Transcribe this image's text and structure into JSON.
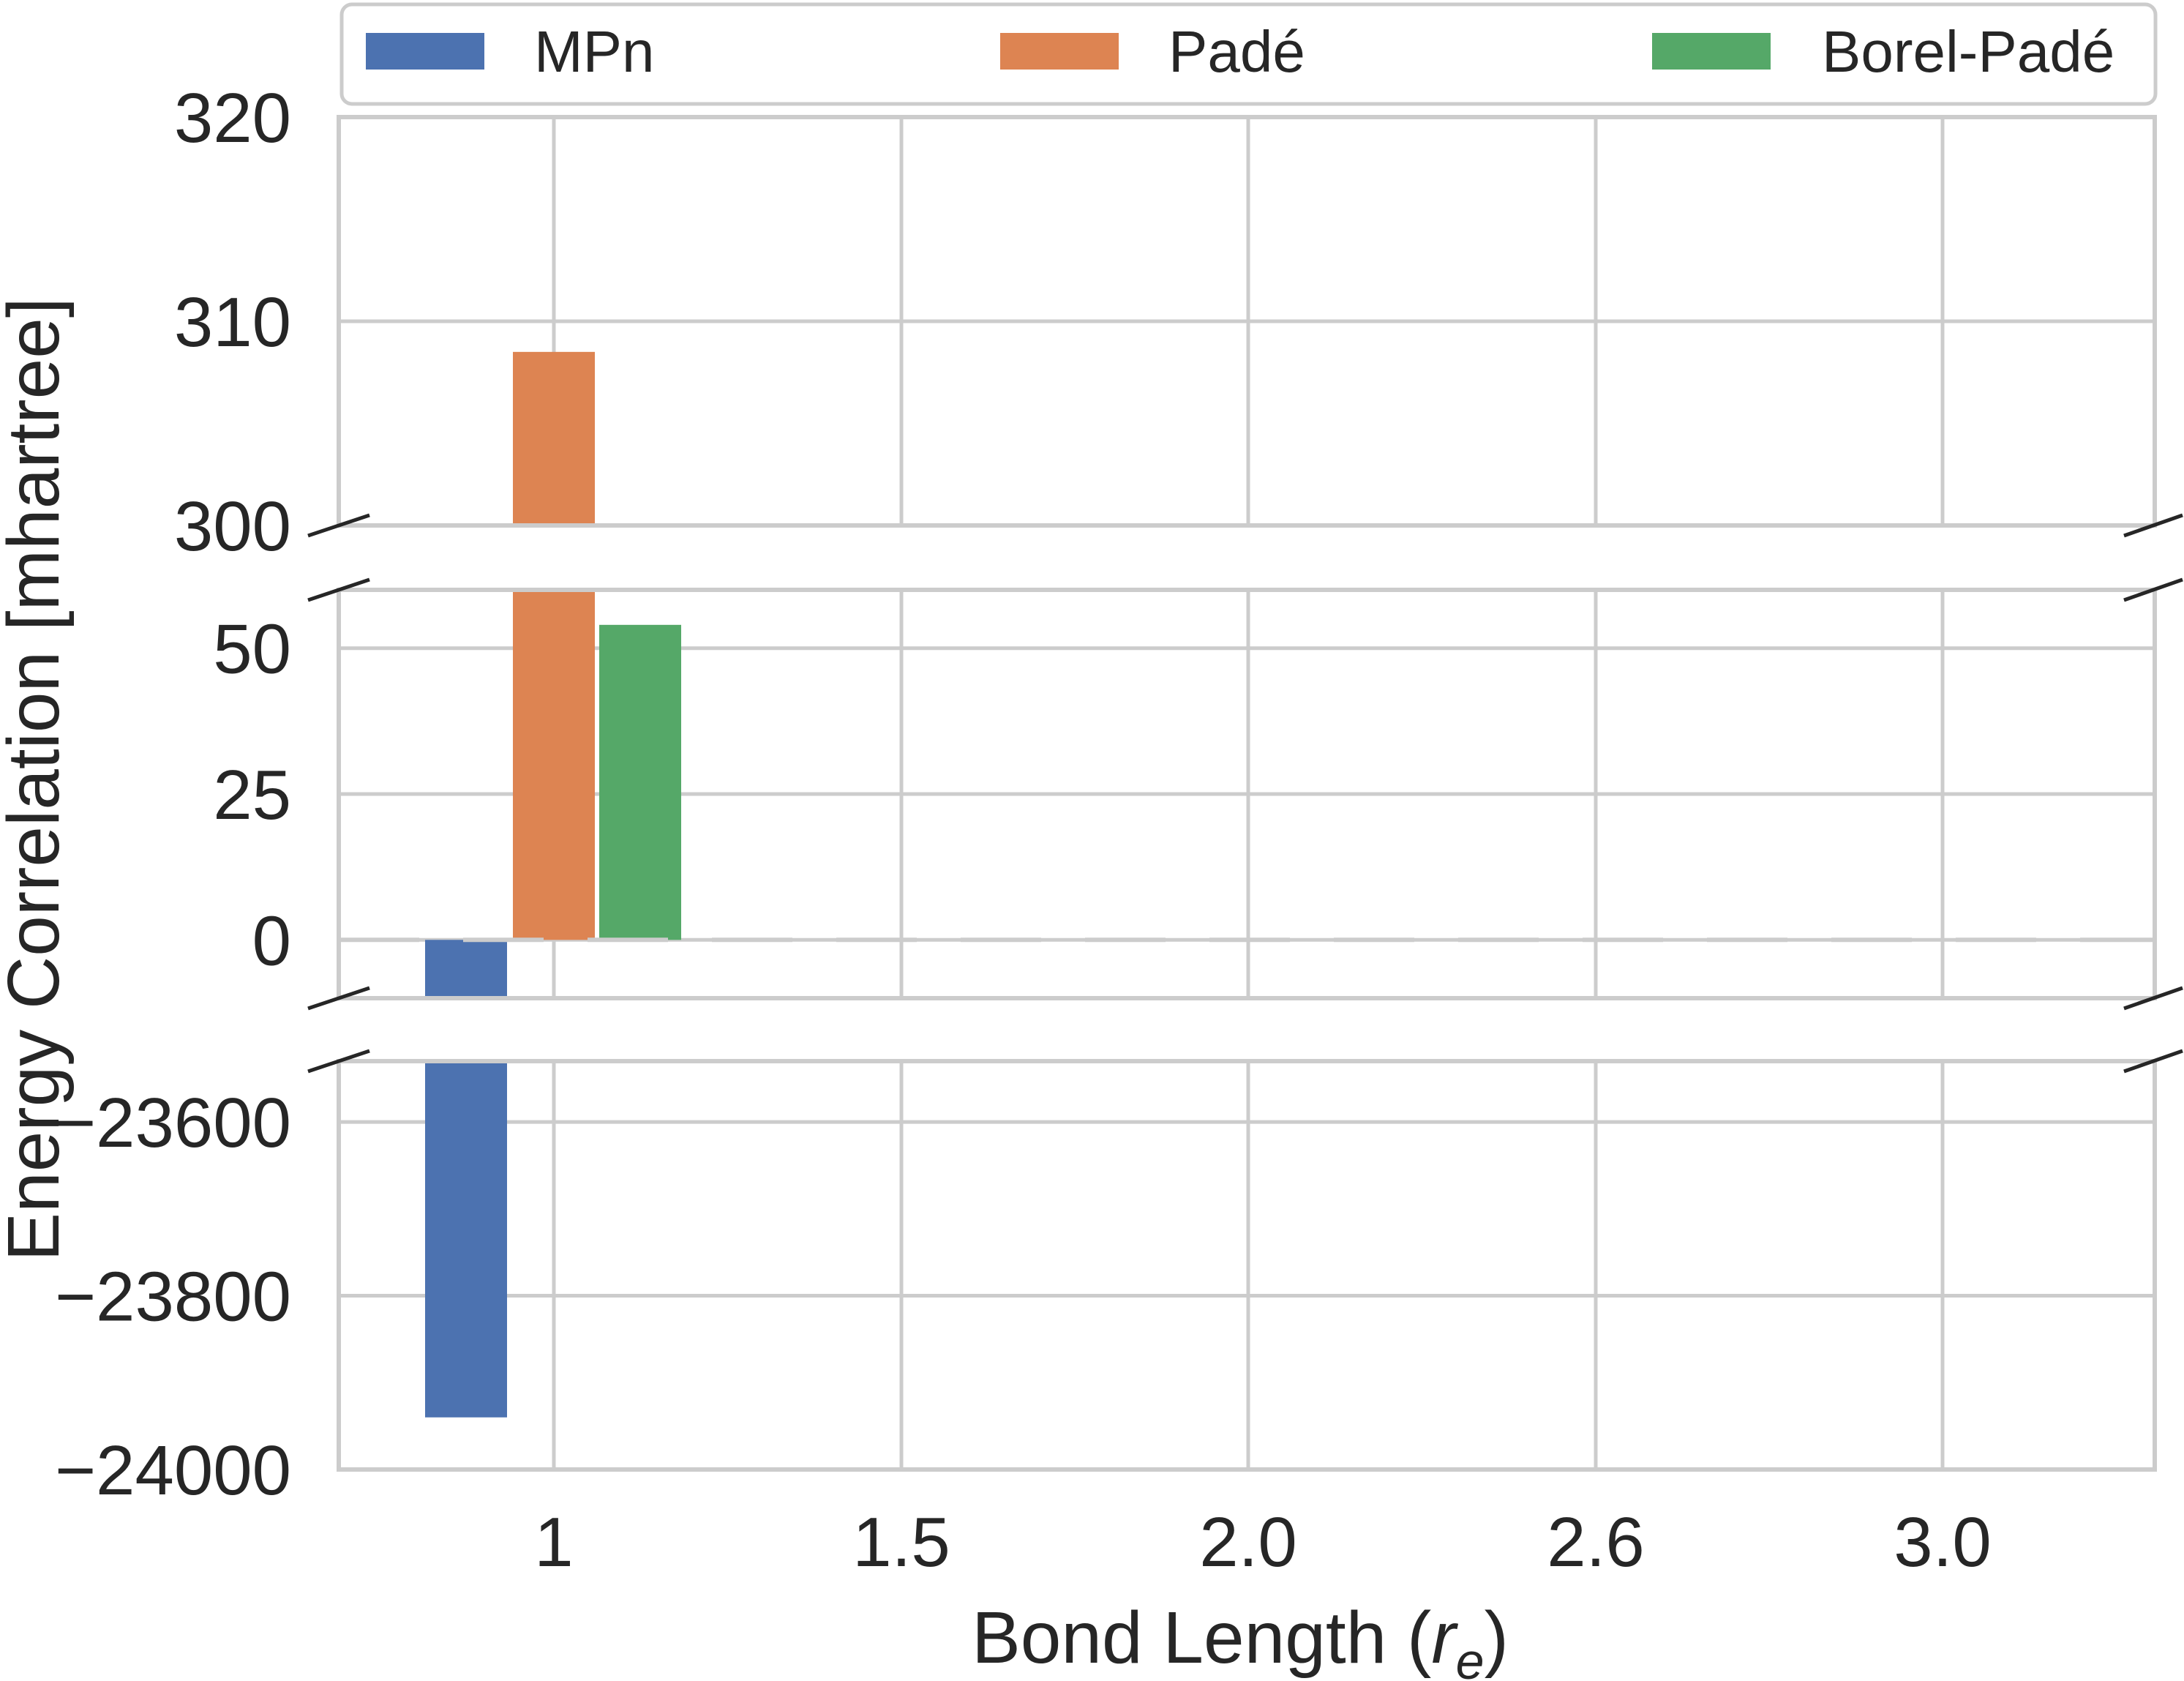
{
  "chart_data": {
    "type": "bar",
    "broken_axis": true,
    "xlabel": "Bond Length (",
    "xlabel_math": "r",
    "xlabel_sub": "e",
    "xlabel_close": ")",
    "ylabel": "Energy Correlation [mhartree]",
    "categories": [
      "1",
      "1.5",
      "2.0",
      "2.6",
      "3.0"
    ],
    "series": [
      {
        "name": "MPn",
        "color": "#4c72b0",
        "values": [
          -23940,
          null,
          null,
          null,
          null
        ]
      },
      {
        "name": "Padé",
        "color": "#dd8452",
        "values": [
          308.5,
          null,
          null,
          null,
          null
        ]
      },
      {
        "name": "Borel-Padé",
        "color": "#55a868",
        "values": [
          54,
          null,
          null,
          null,
          null
        ]
      }
    ],
    "panels": [
      {
        "name": "top",
        "ylim": [
          300,
          320
        ],
        "yticks": [
          300,
          310,
          320
        ],
        "ytick_labels": [
          "300",
          "310",
          "320"
        ]
      },
      {
        "name": "middle",
        "ylim": [
          -10,
          60
        ],
        "yticks": [
          0,
          25,
          50
        ],
        "ytick_labels": [
          "0",
          "25",
          "50"
        ]
      },
      {
        "name": "bottom",
        "ylim": [
          -24000,
          -23530
        ],
        "yticks": [
          -24000,
          -23800,
          -23600
        ],
        "ytick_labels": [
          "−24000",
          "−23800",
          "−23600"
        ]
      }
    ],
    "zero_line": {
      "value": 0,
      "style": "dashed"
    },
    "grid": true,
    "legend": {
      "placement": "top",
      "entries": [
        "MPn",
        "Padé",
        "Borel-Padé"
      ]
    }
  }
}
